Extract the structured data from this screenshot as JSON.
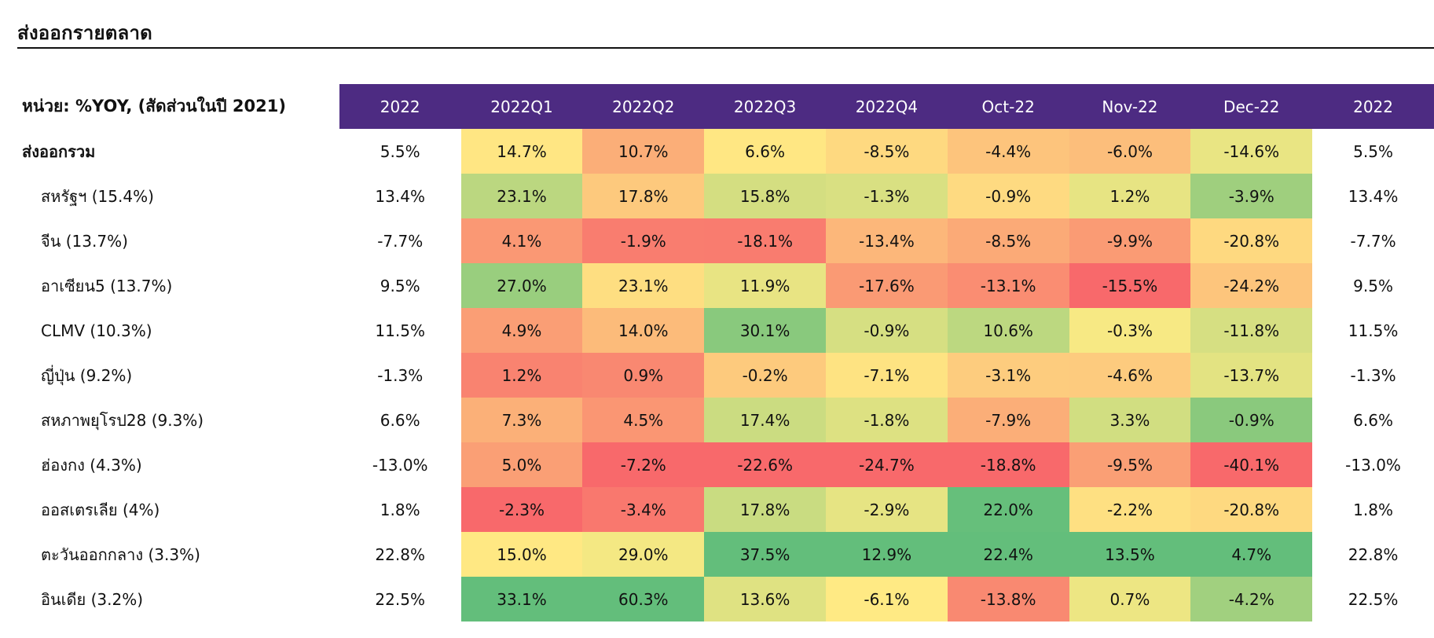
{
  "title": "ส่งออกรายตลาด",
  "table": {
    "unit_label": "หน่วย: %YOY, (สัดส่วนในปี 2021)",
    "columns": [
      "2022",
      "2022Q1",
      "2022Q2",
      "2022Q3",
      "2022Q4",
      "Oct-22",
      "Nov-22",
      "Dec-22",
      "2022"
    ],
    "colors": {
      "header_bg": "#4d2b82",
      "heat_scale": [
        "#f8696b",
        "#fbaa77",
        "#ffeb84",
        "#63be7b"
      ]
    },
    "rows": [
      {
        "label": "ส่งออกรวม",
        "total": true,
        "values": [
          "5.5%",
          "14.7%",
          "10.7%",
          "6.6%",
          "-8.5%",
          "-4.4%",
          "-6.0%",
          "-14.6%",
          "5.5%"
        ]
      },
      {
        "label": "สหรัฐฯ (15.4%)",
        "values": [
          "13.4%",
          "23.1%",
          "17.8%",
          "15.8%",
          "-1.3%",
          "-0.9%",
          "1.2%",
          "-3.9%",
          "13.4%"
        ]
      },
      {
        "label": "จีน (13.7%)",
        "values": [
          "-7.7%",
          "4.1%",
          "-1.9%",
          "-18.1%",
          "-13.4%",
          "-8.5%",
          "-9.9%",
          "-20.8%",
          "-7.7%"
        ]
      },
      {
        "label": "อาเซียน5 (13.7%)",
        "values": [
          "9.5%",
          "27.0%",
          "23.1%",
          "11.9%",
          "-17.6%",
          "-13.1%",
          "-15.5%",
          "-24.2%",
          "9.5%"
        ]
      },
      {
        "label": "CLMV (10.3%)",
        "values": [
          "11.5%",
          "4.9%",
          "14.0%",
          "30.1%",
          "-0.9%",
          "10.6%",
          "-0.3%",
          "-11.8%",
          "11.5%"
        ]
      },
      {
        "label": "ญี่ปุ่น (9.2%)",
        "values": [
          "-1.3%",
          "1.2%",
          "0.9%",
          "-0.2%",
          "-7.1%",
          "-3.1%",
          "-4.6%",
          "-13.7%",
          "-1.3%"
        ]
      },
      {
        "label": "สหภาพยุโรป28 (9.3%)",
        "values": [
          "6.6%",
          "7.3%",
          "4.5%",
          "17.4%",
          "-1.8%",
          "-7.9%",
          "3.3%",
          "-0.9%",
          "6.6%"
        ]
      },
      {
        "label": "ฮ่องกง (4.3%)",
        "values": [
          "-13.0%",
          "5.0%",
          "-7.2%",
          "-22.6%",
          "-24.7%",
          "-18.8%",
          "-9.5%",
          "-40.1%",
          "-13.0%"
        ]
      },
      {
        "label": "ออสเตรเลีย (4%)",
        "values": [
          "1.8%",
          "-2.3%",
          "-3.4%",
          "17.8%",
          "-2.9%",
          "22.0%",
          "-2.2%",
          "-20.8%",
          "1.8%"
        ]
      },
      {
        "label": "ตะวันออกกลาง (3.3%)",
        "values": [
          "22.8%",
          "15.0%",
          "29.0%",
          "37.5%",
          "12.9%",
          "22.4%",
          "13.5%",
          "4.7%",
          "22.8%"
        ]
      },
      {
        "label": "อินเดีย (3.2%)",
        "values": [
          "22.5%",
          "33.1%",
          "60.3%",
          "13.6%",
          "-6.1%",
          "-13.8%",
          "0.7%",
          "-4.2%",
          "22.5%"
        ]
      }
    ]
  }
}
